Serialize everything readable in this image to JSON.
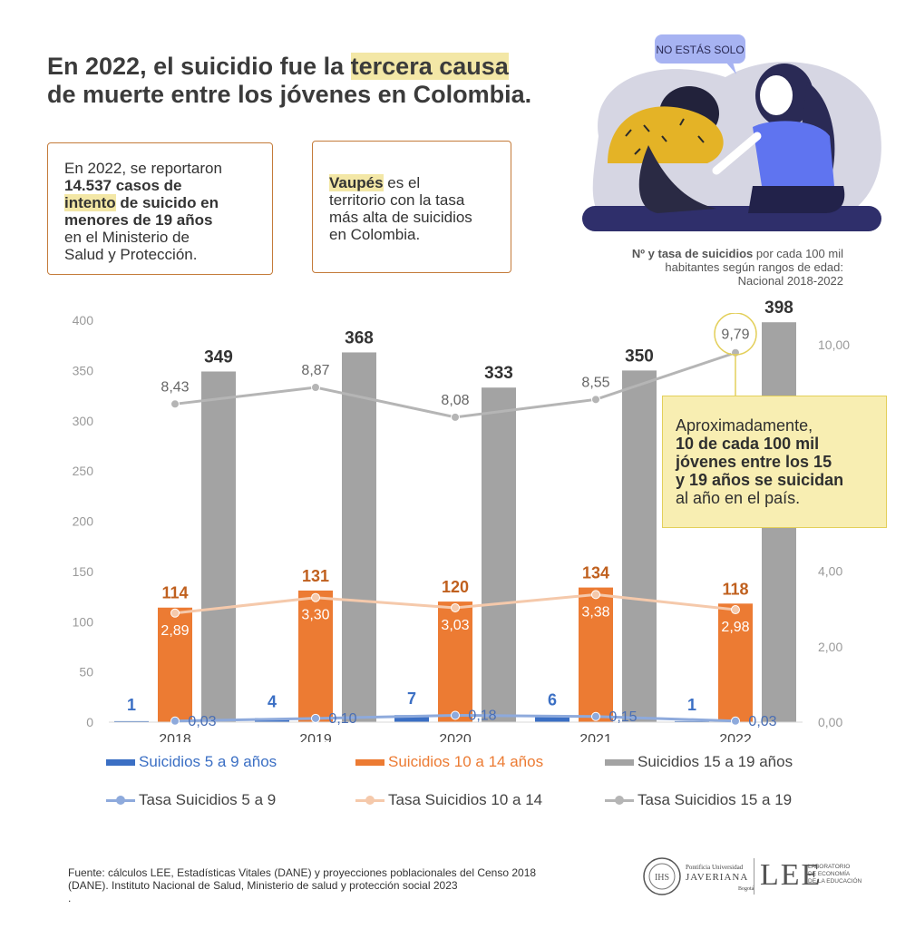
{
  "title": {
    "part1": "En 2022, el suicidio fue la ",
    "highlight": "tercera causa",
    "part2": "de muerte entre los jóvenes en Colombia."
  },
  "box1": {
    "l1": "En 2022, se reportaron",
    "l2_bold": "14.537 casos de",
    "l3_hl": "intento",
    "l3_bold": " de suicido en",
    "l4_bold": "menores de 19 años",
    "l5": "en el Ministerio de",
    "l6": "Salud y Protección."
  },
  "box2": {
    "hl": "Vaupés",
    "l1": " es el",
    "l2": "territorio con la tasa",
    "l3": "más alta de suicidios",
    "l4": "en Colombia."
  },
  "illustration": {
    "bubble": "NO ESTÁS SOLO"
  },
  "chart_subtitle": {
    "bold": "Nº y tasa de suicidios",
    "rest1": " por cada 100 mil",
    "l2": "habitantes según rangos de edad:",
    "l3": "Nacional 2018-2022"
  },
  "callout": {
    "l1": "Aproximadamente,",
    "b1": "10 de cada 100 mil",
    "b2": "jóvenes entre los 15",
    "b3": "y 19 años se suicidan",
    "l2": "al año en el país."
  },
  "chart_data": {
    "type": "bar",
    "categories": [
      "2018",
      "2019",
      "2020",
      "2021",
      "2022"
    ],
    "y_left": {
      "ylim": [
        0,
        400
      ],
      "ticks": [
        "0",
        "50",
        "100",
        "150",
        "200",
        "250",
        "300",
        "350",
        "400"
      ]
    },
    "y_right": {
      "ylim": [
        0,
        10.6
      ],
      "ticks": [
        "0,00",
        "2,00",
        "4,00",
        "10,00"
      ]
    },
    "bar_series": [
      {
        "name": "Suicidios 5 a 9 años",
        "color": "#3b6fc4",
        "values": [
          1,
          4,
          7,
          6,
          1
        ],
        "labels": [
          "1",
          "4",
          "7",
          "6",
          "1"
        ]
      },
      {
        "name": "Suicidios 10 a 14 años",
        "color": "#ec7b33",
        "values": [
          114,
          131,
          120,
          134,
          118
        ],
        "labels": [
          "114",
          "131",
          "120",
          "134",
          "118"
        ]
      },
      {
        "name": "Suicidios 15 a 19 años",
        "color": "#a3a3a3",
        "values": [
          349,
          368,
          333,
          350,
          398
        ],
        "labels": [
          "349",
          "368",
          "333",
          "350",
          "398"
        ]
      }
    ],
    "line_series": [
      {
        "name": "Tasa Suicidios 5 a 9",
        "color": "#8eaadc",
        "values": [
          0.03,
          0.1,
          0.18,
          0.15,
          0.03
        ],
        "labels": [
          "0,03",
          "0,10",
          "0,18",
          "0,15",
          "0,03"
        ]
      },
      {
        "name": "Tasa Suicidios 10 a 14",
        "color": "#f5c9ab",
        "values": [
          2.89,
          3.3,
          3.03,
          3.38,
          2.98
        ],
        "labels": [
          "2,89",
          "3,30",
          "3,03",
          "3,38",
          "2,98"
        ]
      },
      {
        "name": "Tasa Suicidios 15 a 19",
        "color": "#b5b5b5",
        "values": [
          8.43,
          8.87,
          8.08,
          8.55,
          9.79
        ],
        "labels": [
          "8,43",
          "8,87",
          "8,08",
          "8,55",
          "9,79"
        ]
      }
    ],
    "legend_position": "bottom"
  },
  "source": {
    "l1": "Fuente: cálculos LEE, Estadísticas Vitales (DANE) y proyecciones poblacionales del Censo 2018",
    "l2": "(DANE). Instituto Nacional de Salud, Ministerio de salud y protección social 2023",
    "l3": "."
  },
  "logos": {
    "jav1": "Pontificia Universidad",
    "jav2": "JAVERIANA",
    "jav3": "Bogotá",
    "lee": "LEE",
    "lee_sub1": "LABORATORIO",
    "lee_sub2": "DE ECONOMÍA",
    "lee_sub3": "DE LA EDUCACIÓN"
  }
}
